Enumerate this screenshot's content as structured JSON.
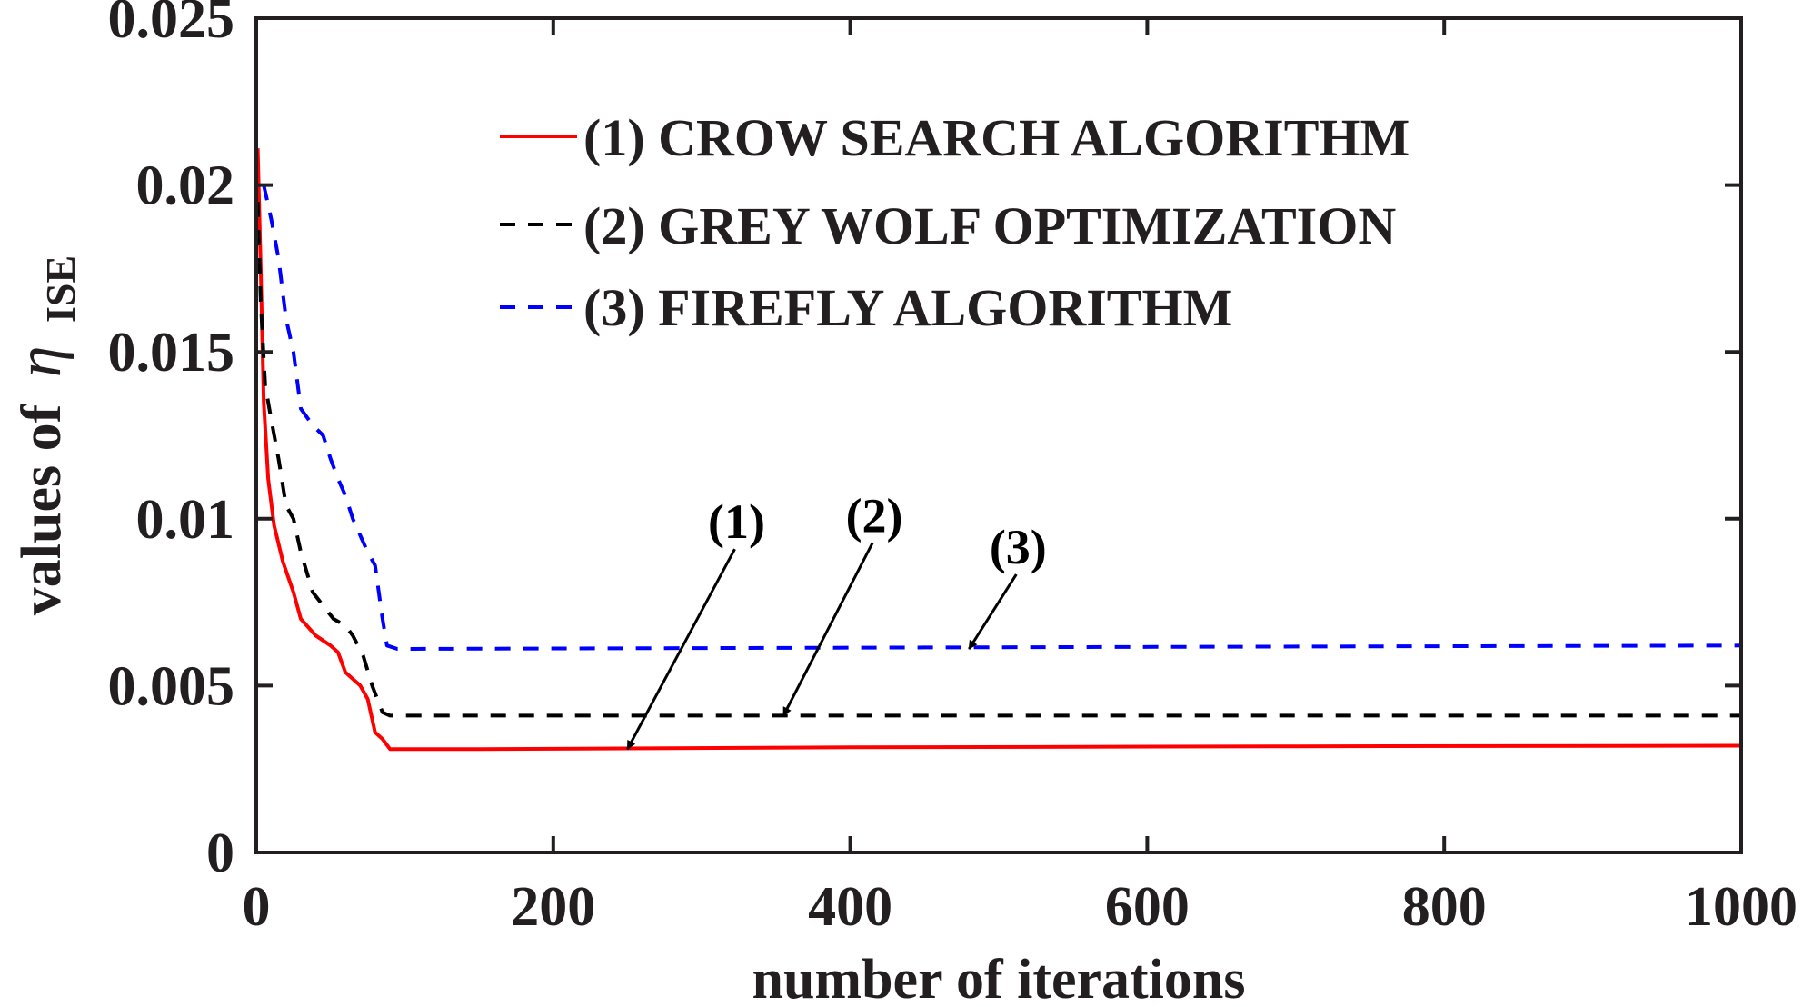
{
  "chart_data": {
    "type": "line",
    "xlabel": "number of iterations",
    "ylabel_prefix": "values of",
    "ylabel_symbol": "η",
    "ylabel_subscript": "ISE",
    "xlim": [
      0,
      1000
    ],
    "ylim": [
      0,
      0.025
    ],
    "xticks": [
      "0",
      "200",
      "400",
      "600",
      "800",
      "1000"
    ],
    "yticks": [
      "0",
      "0.005",
      "0.01",
      "0.015",
      "0.02",
      "0.025"
    ],
    "grid": false,
    "legend_position": "top-center",
    "series": [
      {
        "name": "(1) CROW SEARCH ALGORITHM",
        "color": "#ff0000",
        "dash": "solid",
        "points": [
          [
            1,
            0.0211
          ],
          [
            3,
            0.0175
          ],
          [
            5,
            0.0135
          ],
          [
            8,
            0.0112
          ],
          [
            12,
            0.0098
          ],
          [
            18,
            0.0087
          ],
          [
            25,
            0.0078
          ],
          [
            30,
            0.007
          ],
          [
            40,
            0.0065
          ],
          [
            50,
            0.0062
          ],
          [
            55,
            0.006
          ],
          [
            60,
            0.0054
          ],
          [
            70,
            0.005
          ],
          [
            75,
            0.0046
          ],
          [
            80,
            0.0036
          ],
          [
            85,
            0.0034
          ],
          [
            90,
            0.0031
          ],
          [
            150,
            0.0031
          ],
          [
            400,
            0.00315
          ],
          [
            700,
            0.00318
          ],
          [
            1000,
            0.0032
          ]
        ]
      },
      {
        "name": "(2) GREY WOLF OPTIMIZATION",
        "color": "#000000",
        "dash": "dashed",
        "points": [
          [
            1,
            0.0195
          ],
          [
            3,
            0.0165
          ],
          [
            6,
            0.014
          ],
          [
            10,
            0.013
          ],
          [
            15,
            0.0118
          ],
          [
            20,
            0.0104
          ],
          [
            25,
            0.01
          ],
          [
            30,
            0.009
          ],
          [
            38,
            0.0078
          ],
          [
            45,
            0.0074
          ],
          [
            52,
            0.007
          ],
          [
            60,
            0.0068
          ],
          [
            65,
            0.0065
          ],
          [
            72,
            0.0059
          ],
          [
            78,
            0.005
          ],
          [
            85,
            0.0042
          ],
          [
            90,
            0.0041
          ],
          [
            1000,
            0.0041
          ]
        ]
      },
      {
        "name": "(3) FIREFLY ALGORITHM",
        "color": "#0000ff",
        "dash": "dashed",
        "points": [
          [
            5,
            0.02
          ],
          [
            10,
            0.019
          ],
          [
            15,
            0.0178
          ],
          [
            20,
            0.016
          ],
          [
            25,
            0.015
          ],
          [
            30,
            0.0133
          ],
          [
            38,
            0.0128
          ],
          [
            45,
            0.0125
          ],
          [
            50,
            0.0118
          ],
          [
            55,
            0.0112
          ],
          [
            60,
            0.0107
          ],
          [
            65,
            0.01
          ],
          [
            70,
            0.0095
          ],
          [
            75,
            0.009
          ],
          [
            80,
            0.0086
          ],
          [
            85,
            0.007
          ],
          [
            88,
            0.0062
          ],
          [
            95,
            0.0061
          ],
          [
            500,
            0.00615
          ],
          [
            1000,
            0.0062
          ]
        ]
      }
    ],
    "annotations": [
      {
        "label": "(1)",
        "target": [
          250,
          0.0031
        ]
      },
      {
        "label": "(2)",
        "target": [
          355,
          0.0041
        ]
      },
      {
        "label": "(3)",
        "target": [
          480,
          0.0061
        ]
      }
    ]
  }
}
